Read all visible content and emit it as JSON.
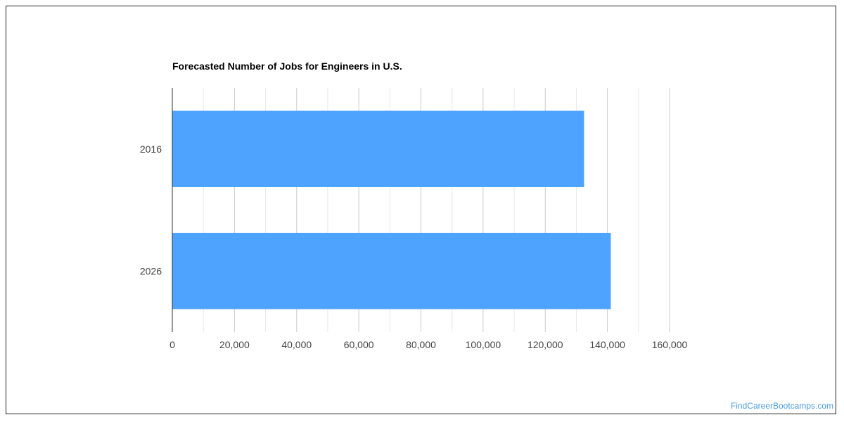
{
  "chart_data": {
    "type": "bar",
    "orientation": "horizontal",
    "title": "Forecasted Number of Jobs for Engineers in U.S.",
    "categories": [
      "2016",
      "2026"
    ],
    "values": [
      132500,
      141100
    ],
    "xlim": [
      0,
      160000
    ],
    "xticks": [
      0,
      20000,
      40000,
      60000,
      80000,
      100000,
      120000,
      140000,
      160000
    ],
    "xtick_labels": [
      "0",
      "20,000",
      "40,000",
      "60,000",
      "80,000",
      "100,000",
      "120,000",
      "140,000",
      "160,000"
    ],
    "grid": true,
    "legend": "none",
    "bar_color": "#4da3ff"
  },
  "watermark": "FindCareerBootcamps.com"
}
